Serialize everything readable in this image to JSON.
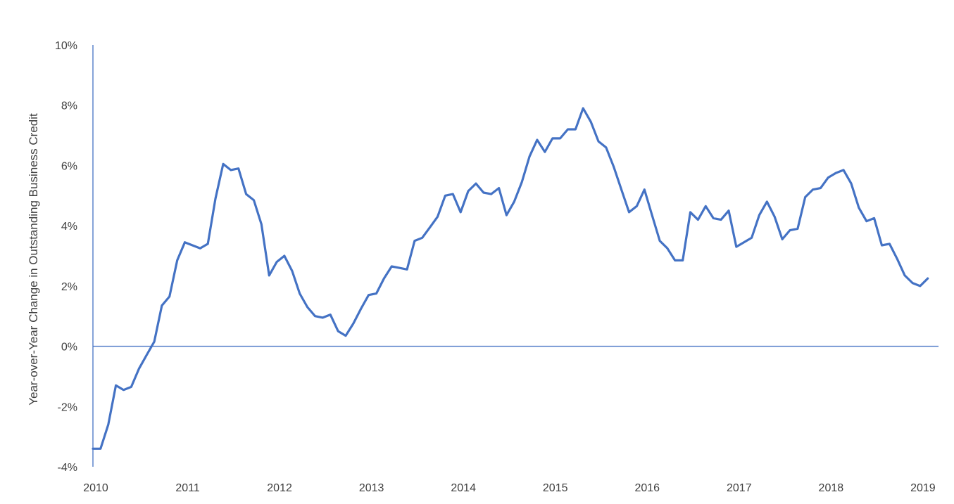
{
  "chart_data": {
    "type": "line",
    "title": "",
    "xlabel": "",
    "ylabel": "Year-over-Year Change in Outstanding Business Credit",
    "xlim": [
      2010.0,
      2019.2
    ],
    "ylim": [
      -4,
      10
    ],
    "x_ticks": [
      "2010",
      "2011",
      "2012",
      "2013",
      "2014",
      "2015",
      "2016",
      "2017",
      "2018",
      "2019"
    ],
    "y_ticks": [
      "-4%",
      "-2%",
      "0%",
      "2%",
      "4%",
      "6%",
      "8%",
      "10%"
    ],
    "y_tick_values": [
      -4,
      -2,
      0,
      2,
      4,
      6,
      8,
      10
    ],
    "grid": false,
    "legend": "none",
    "line_color": "#4472c4",
    "series": [
      {
        "x": [
          2010.0,
          2010.083,
          2010.167,
          2010.25,
          2010.333,
          2010.417,
          2010.5,
          2010.583,
          2010.667,
          2010.75,
          2010.833,
          2010.917,
          2011.0,
          2011.083,
          2011.167,
          2011.25,
          2011.333,
          2011.417,
          2011.5,
          2011.583,
          2011.667,
          2011.75,
          2011.833,
          2011.917,
          2012.0,
          2012.083,
          2012.167,
          2012.25,
          2012.333,
          2012.417,
          2012.5,
          2012.583,
          2012.667,
          2012.75,
          2012.833,
          2012.917,
          2013.0,
          2013.083,
          2013.167,
          2013.25,
          2013.333,
          2013.417,
          2013.5,
          2013.583,
          2013.667,
          2013.75,
          2013.833,
          2013.917,
          2014.0,
          2014.083,
          2014.167,
          2014.25,
          2014.333,
          2014.417,
          2014.5,
          2014.583,
          2014.667,
          2014.75,
          2014.833,
          2014.917,
          2015.0,
          2015.083,
          2015.167,
          2015.25,
          2015.333,
          2015.417,
          2015.5,
          2015.583,
          2015.667,
          2015.75,
          2015.833,
          2015.917,
          2016.0,
          2016.083,
          2016.167,
          2016.25,
          2016.333,
          2016.417,
          2016.5,
          2016.583,
          2016.667,
          2016.75,
          2016.833,
          2016.917,
          2017.0,
          2017.083,
          2017.167,
          2017.25,
          2017.333,
          2017.417,
          2017.5,
          2017.583,
          2017.667,
          2017.75,
          2017.833,
          2017.917,
          2018.0,
          2018.083,
          2018.167,
          2018.25,
          2018.333,
          2018.417,
          2018.5,
          2018.583,
          2018.667,
          2018.75,
          2018.833,
          2018.917,
          2019.0,
          2019.083
        ],
        "values": [
          -3.4,
          -3.4,
          -2.6,
          -1.3,
          -1.45,
          -1.35,
          -0.75,
          -0.3,
          0.15,
          1.35,
          1.65,
          2.85,
          3.45,
          3.35,
          3.25,
          3.4,
          4.9,
          6.05,
          5.85,
          5.9,
          5.05,
          4.85,
          4.05,
          2.35,
          2.8,
          3.0,
          2.5,
          1.75,
          1.3,
          1.0,
          0.95,
          1.05,
          0.5,
          0.35,
          0.75,
          1.25,
          1.7,
          1.75,
          2.25,
          2.65,
          2.6,
          2.55,
          3.5,
          3.6,
          3.95,
          4.3,
          5.0,
          5.05,
          4.45,
          5.15,
          5.4,
          5.1,
          5.05,
          5.25,
          4.35,
          4.8,
          5.45,
          6.3,
          6.85,
          6.45,
          6.9,
          6.9,
          7.2,
          7.2,
          7.9,
          7.45,
          6.8,
          6.6,
          5.95,
          5.2,
          4.45,
          4.65,
          5.2,
          4.35,
          3.5,
          3.25,
          2.85,
          2.85,
          4.45,
          4.2,
          4.65,
          4.25,
          4.2,
          4.5,
          3.3,
          3.45,
          3.6,
          4.35,
          4.8,
          4.3,
          3.55,
          3.85,
          3.9,
          4.95,
          5.2,
          5.25,
          5.6,
          5.75,
          5.85,
          5.4,
          4.6,
          4.15,
          4.25,
          3.35,
          3.4,
          2.9,
          2.35,
          2.1,
          2.0,
          2.25
        ]
      }
    ]
  }
}
